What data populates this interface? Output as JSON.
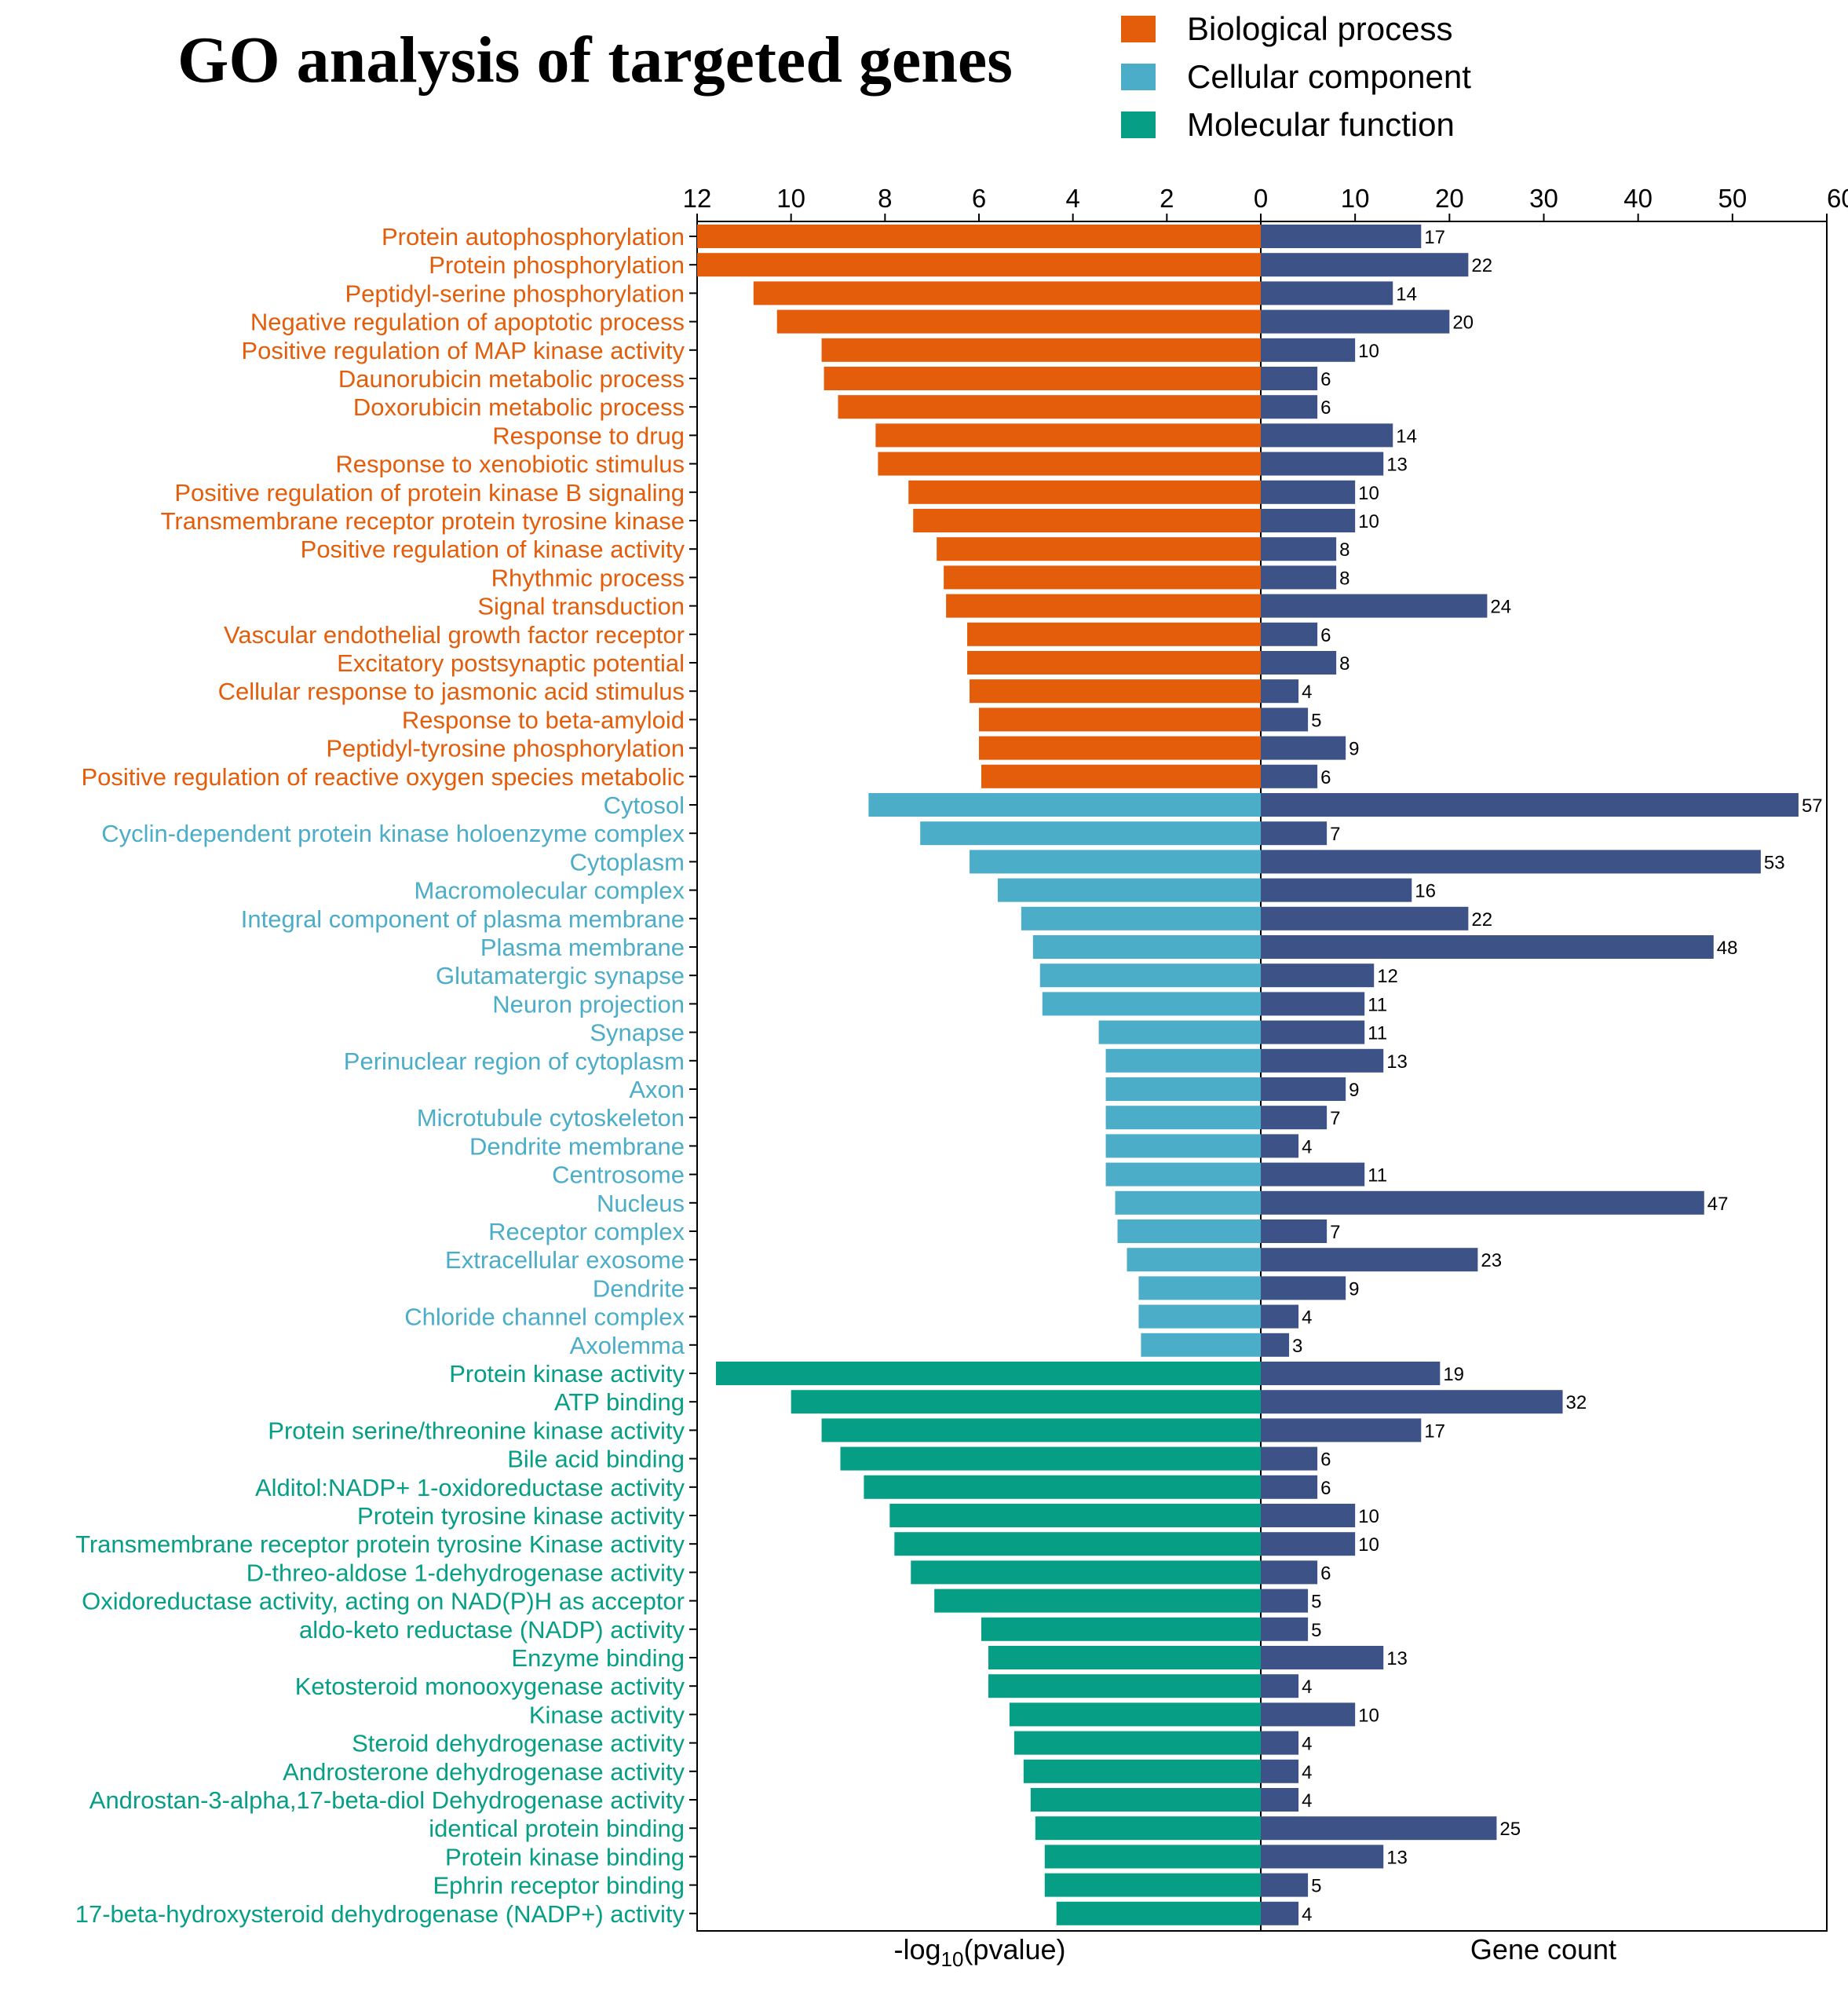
{
  "title": "GO analysis of targeted genes",
  "legend": [
    {
      "label": "Biological process",
      "color": "#E35D0A"
    },
    {
      "label": "Cellular component",
      "color": "#4CADC8"
    },
    {
      "label": "Molecular function",
      "color": "#069F86"
    }
  ],
  "chart_data": {
    "type": "bar",
    "orientation": "horizontal",
    "left_panel": {
      "xlabel_main": "-log",
      "xlabel_sub": "10",
      "xlabel_tail": "(pvalue)",
      "xlim": [
        12,
        0
      ],
      "ticks": [
        "12",
        "10",
        "8",
        "6",
        "4",
        "2",
        "0"
      ]
    },
    "right_panel": {
      "xlabel": "Gene count",
      "xlim": [
        0,
        60
      ],
      "ticks": [
        "0",
        "10",
        "20",
        "30",
        "40",
        "50",
        "60"
      ],
      "bar_color": "#3D5287"
    },
    "categories": [
      {
        "term": "Protein autophosphorylation",
        "group": 0,
        "neglog10p": 12.0,
        "count": 17
      },
      {
        "term": "Protein phosphorylation",
        "group": 0,
        "neglog10p": 12.0,
        "count": 22
      },
      {
        "term": "Peptidyl-serine phosphorylation",
        "group": 0,
        "neglog10p": 10.8,
        "count": 14
      },
      {
        "term": "Negative regulation of apoptotic process",
        "group": 0,
        "neglog10p": 10.3,
        "count": 20
      },
      {
        "term": "Positive regulation of MAP kinase activity",
        "group": 0,
        "neglog10p": 9.35,
        "count": 10
      },
      {
        "term": "Daunorubicin metabolic process",
        "group": 0,
        "neglog10p": 9.3,
        "count": 6
      },
      {
        "term": "Doxorubicin metabolic process",
        "group": 0,
        "neglog10p": 9.0,
        "count": 6
      },
      {
        "term": "Response to drug",
        "group": 0,
        "neglog10p": 8.2,
        "count": 14
      },
      {
        "term": "Response to xenobiotic stimulus",
        "group": 0,
        "neglog10p": 8.15,
        "count": 13
      },
      {
        "term": "Positive regulation of protein kinase B signaling",
        "group": 0,
        "neglog10p": 7.5,
        "count": 10
      },
      {
        "term": "Transmembrane receptor protein tyrosine kinase",
        "group": 0,
        "neglog10p": 7.4,
        "count": 10
      },
      {
        "term": "Positive regulation of kinase activity",
        "group": 0,
        "neglog10p": 6.9,
        "count": 8
      },
      {
        "term": "Rhythmic process",
        "group": 0,
        "neglog10p": 6.75,
        "count": 8
      },
      {
        "term": "Signal transduction",
        "group": 0,
        "neglog10p": 6.7,
        "count": 24
      },
      {
        "term": "Vascular endothelial growth factor receptor",
        "group": 0,
        "neglog10p": 6.25,
        "count": 6
      },
      {
        "term": "Excitatory postsynaptic potential",
        "group": 0,
        "neglog10p": 6.25,
        "count": 8
      },
      {
        "term": "Cellular response to jasmonic acid stimulus",
        "group": 0,
        "neglog10p": 6.2,
        "count": 4
      },
      {
        "term": "Response to beta-amyloid",
        "group": 0,
        "neglog10p": 6.0,
        "count": 5
      },
      {
        "term": "Peptidyl-tyrosine phosphorylation",
        "group": 0,
        "neglog10p": 6.0,
        "count": 9
      },
      {
        "term": "Positive regulation of reactive oxygen species metabolic",
        "group": 0,
        "neglog10p": 5.95,
        "count": 6
      },
      {
        "term": "Cytosol",
        "group": 1,
        "neglog10p": 8.35,
        "count": 57
      },
      {
        "term": "Cyclin-dependent protein kinase holoenzyme complex",
        "group": 1,
        "neglog10p": 7.25,
        "count": 7
      },
      {
        "term": "Cytoplasm",
        "group": 1,
        "neglog10p": 6.2,
        "count": 53
      },
      {
        "term": "Macromolecular complex",
        "group": 1,
        "neglog10p": 5.6,
        "count": 16
      },
      {
        "term": "Integral component of plasma membrane",
        "group": 1,
        "neglog10p": 5.1,
        "count": 22
      },
      {
        "term": "Plasma membrane",
        "group": 1,
        "neglog10p": 4.85,
        "count": 48
      },
      {
        "term": "Glutamatergic synapse",
        "group": 1,
        "neglog10p": 4.7,
        "count": 12
      },
      {
        "term": "Neuron projection",
        "group": 1,
        "neglog10p": 4.65,
        "count": 11
      },
      {
        "term": "Synapse",
        "group": 1,
        "neglog10p": 3.45,
        "count": 11
      },
      {
        "term": "Perinuclear region of cytoplasm",
        "group": 1,
        "neglog10p": 3.3,
        "count": 13
      },
      {
        "term": "Axon",
        "group": 1,
        "neglog10p": 3.3,
        "count": 9
      },
      {
        "term": "Microtubule cytoskeleton",
        "group": 1,
        "neglog10p": 3.3,
        "count": 7
      },
      {
        "term": "Dendrite membrane",
        "group": 1,
        "neglog10p": 3.3,
        "count": 4
      },
      {
        "term": "Centrosome",
        "group": 1,
        "neglog10p": 3.3,
        "count": 11
      },
      {
        "term": "Nucleus",
        "group": 1,
        "neglog10p": 3.1,
        "count": 47
      },
      {
        "term": "Receptor complex",
        "group": 1,
        "neglog10p": 3.05,
        "count": 7
      },
      {
        "term": "Extracellular exosome",
        "group": 1,
        "neglog10p": 2.85,
        "count": 23
      },
      {
        "term": "Dendrite",
        "group": 1,
        "neglog10p": 2.6,
        "count": 9
      },
      {
        "term": "Chloride channel complex",
        "group": 1,
        "neglog10p": 2.6,
        "count": 4
      },
      {
        "term": "Axolemma",
        "group": 1,
        "neglog10p": 2.55,
        "count": 3
      },
      {
        "term": "Protein kinase activity",
        "group": 2,
        "neglog10p": 11.6,
        "count": 19
      },
      {
        "term": "ATP binding",
        "group": 2,
        "neglog10p": 10.0,
        "count": 32
      },
      {
        "term": "Protein serine/threonine kinase activity",
        "group": 2,
        "neglog10p": 9.35,
        "count": 17
      },
      {
        "term": "Bile acid binding",
        "group": 2,
        "neglog10p": 8.95,
        "count": 6
      },
      {
        "term": "Alditol:NADP+ 1-oxidoreductase activity",
        "group": 2,
        "neglog10p": 8.45,
        "count": 6
      },
      {
        "term": "Protein tyrosine kinase activity",
        "group": 2,
        "neglog10p": 7.9,
        "count": 10
      },
      {
        "term": "Transmembrane receptor protein tyrosine Kinase activity",
        "group": 2,
        "neglog10p": 7.8,
        "count": 10
      },
      {
        "term": "D-threo-aldose 1-dehydrogenase activity",
        "group": 2,
        "neglog10p": 7.45,
        "count": 6
      },
      {
        "term": "Oxidoreductase activity, acting on NAD(P)H as acceptor",
        "group": 2,
        "neglog10p": 6.95,
        "count": 5
      },
      {
        "term": "aldo-keto reductase (NADP) activity",
        "group": 2,
        "neglog10p": 5.95,
        "count": 5
      },
      {
        "term": "Enzyme binding",
        "group": 2,
        "neglog10p": 5.8,
        "count": 13
      },
      {
        "term": "Ketosteroid monooxygenase activity",
        "group": 2,
        "neglog10p": 5.8,
        "count": 4
      },
      {
        "term": "Kinase activity",
        "group": 2,
        "neglog10p": 5.35,
        "count": 10
      },
      {
        "term": "Steroid dehydrogenase activity",
        "group": 2,
        "neglog10p": 5.25,
        "count": 4
      },
      {
        "term": "Androsterone dehydrogenase activity",
        "group": 2,
        "neglog10p": 5.05,
        "count": 4
      },
      {
        "term": "Androstan-3-alpha,17-beta-diol Dehydrogenase activity",
        "group": 2,
        "neglog10p": 4.9,
        "count": 4
      },
      {
        "term": "identical protein binding",
        "group": 2,
        "neglog10p": 4.8,
        "count": 25
      },
      {
        "term": "Protein kinase binding",
        "group": 2,
        "neglog10p": 4.6,
        "count": 13
      },
      {
        "term": "Ephrin receptor binding",
        "group": 2,
        "neglog10p": 4.6,
        "count": 5
      },
      {
        "term": "17-beta-hydroxysteroid dehydrogenase (NADP+) activity",
        "group": 2,
        "neglog10p": 4.35,
        "count": 4
      }
    ]
  }
}
